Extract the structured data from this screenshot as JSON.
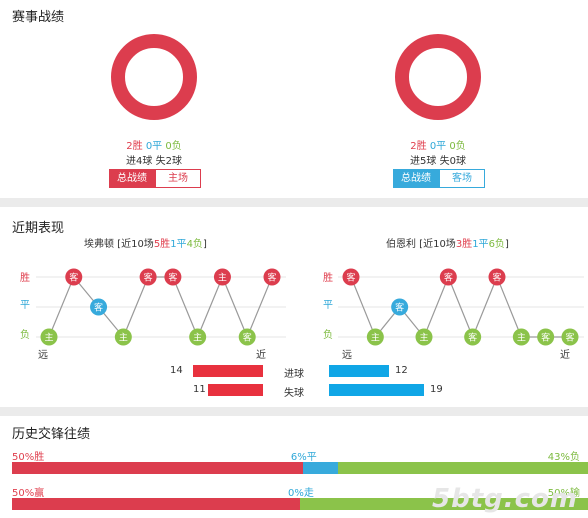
{
  "colors": {
    "red": "#dc3d4e",
    "blue": "#37aadc",
    "green": "#8bc34a",
    "grey": "#bbbbbb"
  },
  "record": {
    "title": "赛事战绩",
    "left": {
      "win": "2胜",
      "draw": "0平",
      "loss": "0负",
      "goals": "进4球 失2球",
      "tab_total": "总战绩",
      "tab_venue": "主场",
      "win_pct": 100
    },
    "right": {
      "win": "2胜",
      "draw": "0平",
      "loss": "0负",
      "goals": "进5球 失0球",
      "tab_total": "总战绩",
      "tab_venue": "客场",
      "win_pct": 100
    }
  },
  "recent": {
    "title": "近期表现",
    "left": {
      "name": "埃弗顿",
      "head_pre": " [近10场",
      "w": "5胜",
      "d": "1平",
      "l": "4负",
      "head_post": "]",
      "results": [
        "L",
        "W",
        "D",
        "L",
        "W",
        "W",
        "L",
        "W",
        "L",
        "W"
      ],
      "venues": [
        "主",
        "客",
        "客",
        "主",
        "客",
        "客",
        "主",
        "主",
        "客",
        "客"
      ]
    },
    "right": {
      "name": "伯恩利",
      "head_pre": " [近10场",
      "w": "3胜",
      "d": "1平",
      "l": "6负",
      "head_post": "]",
      "results": [
        "W",
        "L",
        "D",
        "L",
        "W",
        "L",
        "W",
        "L",
        "L",
        "L"
      ],
      "venues": [
        "客",
        "主",
        "客",
        "主",
        "客",
        "客",
        "客",
        "主",
        "客",
        "客"
      ]
    },
    "ylabels": {
      "w": "胜",
      "d": "平",
      "l": "负"
    },
    "far": "远",
    "near": "近",
    "goals_for_label": "进球",
    "goals_against_label": "失球",
    "left_for": 14,
    "left_against": 11,
    "right_for": 12,
    "right_against": 19
  },
  "history": {
    "title": "历史交锋往绩",
    "row1": {
      "left": "50%胜",
      "mid": "6%平",
      "right": "43%负",
      "a": 50,
      "b": 6,
      "c": 43
    },
    "row2": {
      "left": "50%赢",
      "mid": "0%走",
      "right": "50%输",
      "a": 50,
      "b": 0,
      "c": 50
    }
  },
  "watermark": "5btg.com"
}
